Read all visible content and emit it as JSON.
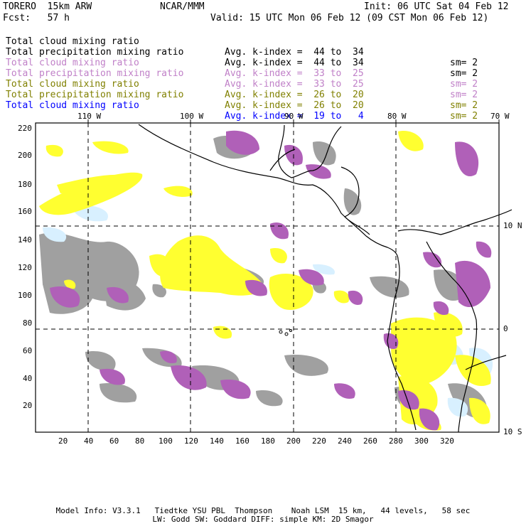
{
  "header": {
    "model": "TORERO  15km ARW",
    "org": "NCAR/MMM",
    "init": "Init: 06 UTC Sat 04 Feb 12",
    "fcst": "Fcst:   57 h",
    "valid": "Valid: 15 UTC Mon 06 Feb 12 (09 CST Mon 06 Feb 12)"
  },
  "legend": [
    {
      "name": "Total cloud mixing ratio",
      "avg": "Avg. k-index =  44 to  34",
      "sm": "sm= 2",
      "color": "#000000"
    },
    {
      "name": "Total precipitation mixing ratio",
      "avg": "Avg. k-index =  44 to  34",
      "sm": "sm= 2",
      "color": "#000000"
    },
    {
      "name": "Total cloud mixing ratio",
      "avg": "Avg. k-index =  33 to  25",
      "sm": "sm= 2",
      "color": "#c080c8"
    },
    {
      "name": "Total precipitation mixing ratio",
      "avg": "Avg. k-index =  33 to  25",
      "sm": "sm= 2",
      "color": "#c080c8"
    },
    {
      "name": "Total cloud mixing ratio",
      "avg": "Avg. k-index =  26 to  20",
      "sm": "sm= 2",
      "color": "#808000"
    },
    {
      "name": "Total precipitation mixing ratio",
      "avg": "Avg. k-index =  26 to  20",
      "sm": "sm= 2",
      "color": "#808000"
    },
    {
      "name": "Total cloud mixing ratio",
      "avg": "Avg. k-index =  19 to   4",
      "sm": "",
      "color": "#0000ff"
    }
  ],
  "map": {
    "lon_labels": [
      "110 W",
      "100 W",
      "90 W",
      "80 W",
      "70 W"
    ],
    "lat_labels": [
      "10 N",
      "0",
      "10 S"
    ],
    "x_ticks": [
      "20",
      "40",
      "60",
      "80",
      "100",
      "120",
      "140",
      "160",
      "180",
      "200",
      "220",
      "240",
      "260",
      "280",
      "300",
      "320"
    ],
    "y_ticks": [
      "220",
      "200",
      "180",
      "160",
      "140",
      "120",
      "100",
      "80",
      "60",
      "40",
      "20"
    ],
    "colors": {
      "gray": "#a0a0a0",
      "purple": "#b060b8",
      "yellow": "#ffff30",
      "lightblue": "#d8f0ff",
      "grid": "#000000"
    }
  },
  "footer": {
    "line1": "Model Info: V3.3.1   Tiedtke YSU PBL  Thompson    Noah LSM  15 km,   44 levels,   58 sec",
    "line2": "LW: Godd SW: Goddard DIFF: simple KM: 2D Smagor"
  }
}
